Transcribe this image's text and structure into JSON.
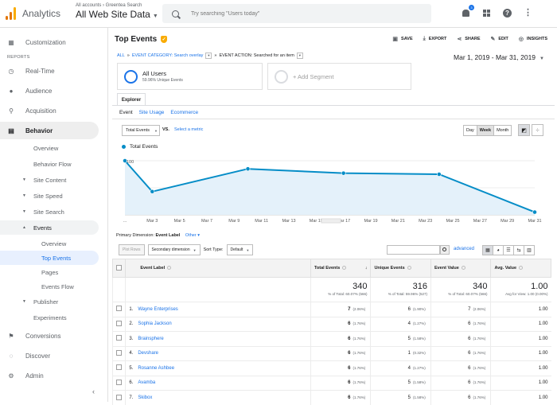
{
  "topbar": {
    "app_title": "Analytics",
    "account_crumb": "All accounts › Greentea Search",
    "property_name": "All Web Site Data",
    "search_placeholder": "Try searching \"Users today\"",
    "notification_count": "3",
    "logo_colors": [
      "#f9ab00",
      "#e37400",
      "#e37400"
    ]
  },
  "sidebar": {
    "customization": "Customization",
    "reports_label": "REPORTS",
    "items": {
      "realtime": "Real-Time",
      "audience": "Audience",
      "acquisition": "Acquisition",
      "behavior": "Behavior",
      "conversions": "Conversions",
      "discover": "Discover",
      "admin": "Admin"
    },
    "behavior_sub": {
      "overview": "Overview",
      "behavior_flow": "Behavior Flow",
      "site_content": "Site Content",
      "site_speed": "Site Speed",
      "site_search": "Site Search",
      "events": "Events",
      "events_overview": "Overview",
      "top_events": "Top Events",
      "pages": "Pages",
      "events_flow": "Events Flow",
      "publisher": "Publisher",
      "experiments": "Experiments"
    }
  },
  "report": {
    "title": "Top Events",
    "actions": {
      "save": "SAVE",
      "export": "EXPORT",
      "share": "SHARE",
      "edit": "EDIT",
      "insights": "INSIGHTS"
    },
    "filters": {
      "all": "ALL",
      "category": "EVENT CATEGORY: Search overlay",
      "action": "EVENT ACTION: Searched for an item"
    },
    "date_range": "Mar 1, 2019 - Mar 31, 2019",
    "segments": {
      "all_users": "All Users",
      "all_users_sub": "59.96% Unique Events",
      "add": "+ Add Segment"
    },
    "explorer_tab": "Explorer",
    "subtabs": {
      "event": "Event",
      "site_usage": "Site Usage",
      "ecommerce": "Ecommerce"
    },
    "metric_select": "Total Events",
    "vs": "VS.",
    "select_metric": "Select a metric",
    "granularity": {
      "day": "Day",
      "week": "Week",
      "month": "Month"
    },
    "legend": "Total Events",
    "primary_dim_label": "Primary Dimension:",
    "primary_dim_value": "Event Label",
    "other": "Other",
    "toolbar": {
      "plot_rows": "Plot Rows",
      "secondary": "Secondary dimension",
      "sort_type": "Sort Type:",
      "sort_default": "Default",
      "advanced": "advanced"
    }
  },
  "chart_data": {
    "type": "line",
    "x": [
      "Mar 1",
      "Mar 3",
      "Mar 10",
      "Mar 17",
      "Mar 24",
      "Mar 31"
    ],
    "tick_labels": [
      "...",
      "Mar 3",
      "Mar 5",
      "Mar 7",
      "Mar 9",
      "Mar 11",
      "Mar 13",
      "Mar 15",
      "Mar 17",
      "Mar 19",
      "Mar 21",
      "Mar 23",
      "Mar 25",
      "Mar 27",
      "Mar 29",
      "Mar 31"
    ],
    "series": [
      {
        "name": "Total Events",
        "values": [
          100,
          43,
          85,
          77,
          75,
          5
        ]
      }
    ],
    "y_ticks": [
      "100",
      "50"
    ],
    "ylim": [
      0,
      100
    ],
    "color": "#058dc7",
    "fill": "#e4f1fa"
  },
  "table": {
    "headers": {
      "label": "Event Label",
      "total": "Total Events",
      "unique": "Unique Events",
      "value": "Event Value",
      "avg": "Avg. Value"
    },
    "summary": {
      "total": "340",
      "total_sub": "% of Total: 60.07% (566)",
      "unique": "316",
      "unique_sub": "% of Total: 59.96% (527)",
      "value": "340",
      "value_sub": "% of Total: 60.07% (566)",
      "avg": "1.00",
      "avg_sub": "Avg for View: 1.00 (0.00%)"
    },
    "rows": [
      {
        "idx": "1.",
        "label": "Wayne Enterprises",
        "total": "7",
        "total_pct": "(2.06%)",
        "unique": "6",
        "unique_pct": "(1.90%)",
        "value": "7",
        "value_pct": "(2.06%)",
        "avg": "1.00"
      },
      {
        "idx": "2.",
        "label": "Sophia Jackson",
        "total": "6",
        "total_pct": "(1.76%)",
        "unique": "4",
        "unique_pct": "(1.27%)",
        "value": "6",
        "value_pct": "(1.76%)",
        "avg": "1.00"
      },
      {
        "idx": "3.",
        "label": "Brainsphere",
        "total": "6",
        "total_pct": "(1.76%)",
        "unique": "5",
        "unique_pct": "(1.58%)",
        "value": "6",
        "value_pct": "(1.76%)",
        "avg": "1.00"
      },
      {
        "idx": "4.",
        "label": "Devshare",
        "total": "6",
        "total_pct": "(1.76%)",
        "unique": "1",
        "unique_pct": "(0.32%)",
        "value": "6",
        "value_pct": "(1.76%)",
        "avg": "1.00"
      },
      {
        "idx": "5.",
        "label": "Rosanne Ashbee",
        "total": "6",
        "total_pct": "(1.76%)",
        "unique": "4",
        "unique_pct": "(1.27%)",
        "value": "6",
        "value_pct": "(1.76%)",
        "avg": "1.00"
      },
      {
        "idx": "6.",
        "label": "Avamba",
        "total": "6",
        "total_pct": "(1.76%)",
        "unique": "5",
        "unique_pct": "(1.58%)",
        "value": "6",
        "value_pct": "(1.76%)",
        "avg": "1.00"
      },
      {
        "idx": "7.",
        "label": "Skibox",
        "total": "6",
        "total_pct": "(1.76%)",
        "unique": "5",
        "unique_pct": "(1.58%)",
        "value": "6",
        "value_pct": "(1.76%)",
        "avg": "1.00"
      }
    ]
  }
}
